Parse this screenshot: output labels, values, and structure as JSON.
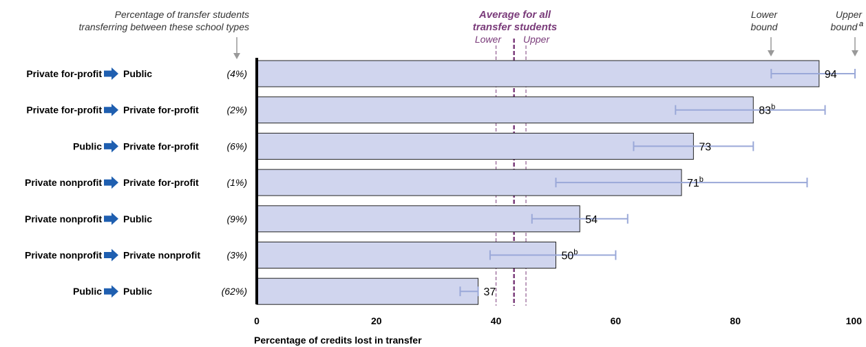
{
  "chart_data": {
    "type": "bar",
    "orientation": "horizontal",
    "xlabel": "Percentage of credits lost in transfer",
    "xlim": [
      0,
      100
    ],
    "xticks": [
      0,
      20,
      40,
      60,
      80,
      100
    ],
    "categories": [
      {
        "from": "Private for-profit",
        "to": "Public",
        "share": "(4%)",
        "value": 94,
        "lower": 86,
        "upper": 100,
        "note": ""
      },
      {
        "from": "Private for-profit",
        "to": "Private for-profit",
        "share": "(2%)",
        "value": 83,
        "lower": 70,
        "upper": 95,
        "note": "b"
      },
      {
        "from": "Public",
        "to": "Private for-profit",
        "share": "(6%)",
        "value": 73,
        "lower": 63,
        "upper": 83,
        "note": ""
      },
      {
        "from": "Private nonprofit",
        "to": "Private for-profit",
        "share": "(1%)",
        "value": 71,
        "lower": 50,
        "upper": 92,
        "note": "b"
      },
      {
        "from": "Private nonprofit",
        "to": "Public",
        "share": "(9%)",
        "value": 54,
        "lower": 46,
        "upper": 62,
        "note": ""
      },
      {
        "from": "Private nonprofit",
        "to": "Private nonprofit",
        "share": "(3%)",
        "value": 50,
        "lower": 39,
        "upper": 60,
        "note": "b"
      },
      {
        "from": "Public",
        "to": "Public",
        "share": "(62%)",
        "value": 37,
        "lower": 34,
        "upper": 37,
        "note": ""
      }
    ],
    "average": {
      "value": 43,
      "lower": 40,
      "upper": 45
    },
    "colors": {
      "bar_fill": "#d0d5ee",
      "bar_stroke": "#222222",
      "error_bar": "#9aa8d8",
      "average": "#7a3b7a",
      "arrow": "#1f5fb0"
    }
  },
  "annotations": {
    "share_note_line1": "Percentage of transfer students",
    "share_note_line2": "transferring between these school types",
    "average_line1": "Average for all",
    "average_line2": "transfer students",
    "average_lower": "Lower",
    "average_upper": "Upper",
    "lower_bound_line1": "Lower",
    "lower_bound_line2": "bound",
    "upper_bound_line1": "Upper",
    "upper_bound_line2": "bound",
    "upper_bound_sup": "a"
  }
}
